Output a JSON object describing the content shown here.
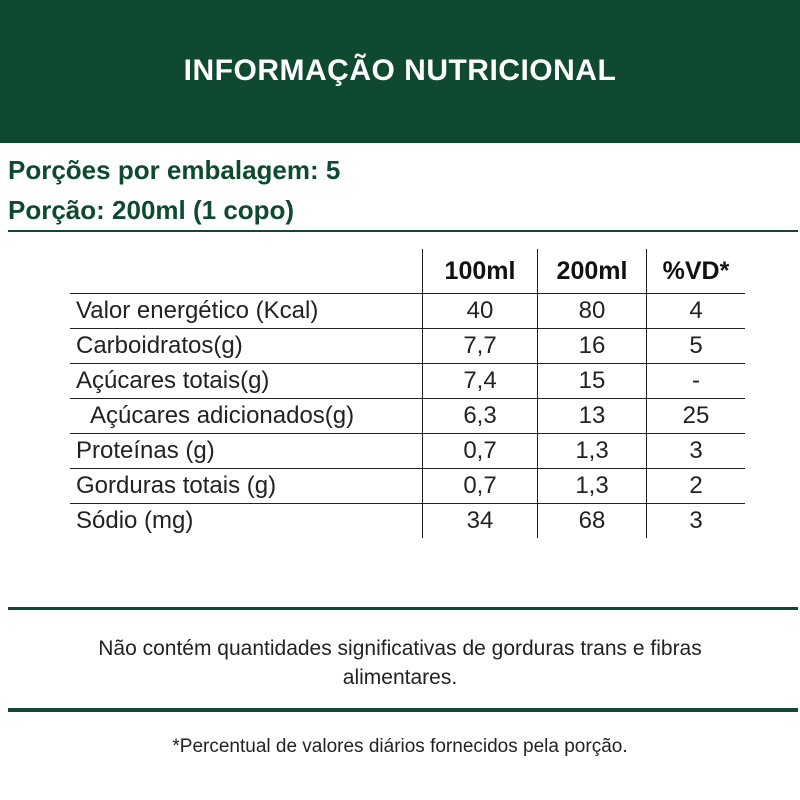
{
  "header": {
    "title": "INFORMAÇÃO NUTRICIONAL"
  },
  "serving": {
    "per_package": "Porções por embalagem: 5",
    "portion": "Porção: 200ml (1 copo)"
  },
  "table": {
    "headers": [
      "100ml",
      "200ml",
      "%VD*"
    ],
    "rows": [
      {
        "name": "Valor energético (Kcal)",
        "v100": "40",
        "v200": "80",
        "vd": "4"
      },
      {
        "name": "Carboidratos(g)",
        "v100": "7,7",
        "v200": "16",
        "vd": "5"
      },
      {
        "name": "Açúcares totais(g)",
        "v100": "7,4",
        "v200": "15",
        "vd": "-"
      },
      {
        "name": "Açúcares adicionados(g)",
        "v100": "6,3",
        "v200": "13",
        "vd": "25"
      },
      {
        "name": "Proteínas (g)",
        "v100": "0,7",
        "v200": "1,3",
        "vd": "3"
      },
      {
        "name": "Gorduras totais (g)",
        "v100": "0,7",
        "v200": "1,3",
        "vd": "2"
      },
      {
        "name": "Sódio (mg)",
        "v100": "34",
        "v200": "68",
        "vd": "3"
      }
    ]
  },
  "note": "Não contém quantidades significativas de gorduras trans e fibras alimentares.",
  "footnote": "*Percentual de valores diários fornecidos pela porção.",
  "colors": {
    "brand_green": "#0f4a30",
    "text": "#222222",
    "background": "#ffffff"
  }
}
